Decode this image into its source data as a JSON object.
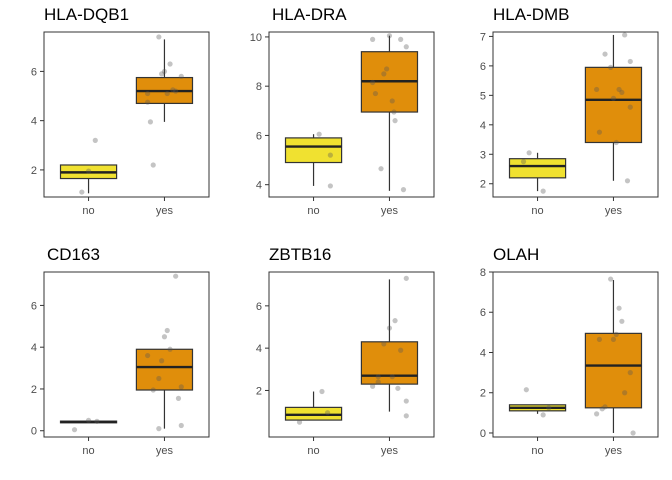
{
  "chart_data": [
    {
      "type": "box",
      "title": "HLA-DQB1",
      "categories": [
        "no",
        "yes"
      ],
      "ylim": [
        0.9,
        7.6
      ],
      "yticks": [
        2,
        4,
        6
      ],
      "groups": [
        {
          "name": "no",
          "color": "#F0E130",
          "box": {
            "min": 1.05,
            "q1": 1.65,
            "median": 1.9,
            "q3": 2.2,
            "max": 2.2
          },
          "points": [
            [
              -0.12,
              1.1
            ],
            [
              0.12,
              3.2
            ],
            [
              0.0,
              1.95
            ]
          ]
        },
        {
          "name": "yes",
          "color": "#E08E0B",
          "box": {
            "min": 3.95,
            "q1": 4.7,
            "median": 5.2,
            "q3": 5.75,
            "max": 7.3
          },
          "points": [
            [
              -0.3,
              4.75
            ],
            [
              -0.25,
              3.95
            ],
            [
              -0.2,
              2.2
            ],
            [
              -0.1,
              7.4
            ],
            [
              -0.05,
              5.9
            ],
            [
              0.0,
              6.0
            ],
            [
              0.05,
              5.1
            ],
            [
              0.1,
              6.3
            ],
            [
              0.15,
              5.25
            ],
            [
              0.2,
              5.2
            ],
            [
              0.3,
              5.8
            ],
            [
              -0.3,
              5.1
            ]
          ]
        }
      ]
    },
    {
      "type": "box",
      "title": "HLA-DRA",
      "categories": [
        "no",
        "yes"
      ],
      "ylim": [
        3.5,
        10.2
      ],
      "yticks": [
        4,
        6,
        8,
        10
      ],
      "groups": [
        {
          "name": "no",
          "color": "#F0E130",
          "box": {
            "min": 3.95,
            "q1": 4.9,
            "median": 5.55,
            "q3": 5.9,
            "max": 6.05
          },
          "points": [
            [
              0.1,
              6.05
            ],
            [
              0.3,
              5.2
            ],
            [
              0.3,
              3.95
            ]
          ]
        },
        {
          "name": "yes",
          "color": "#E08E0B",
          "box": {
            "min": 3.75,
            "q1": 6.95,
            "median": 8.2,
            "q3": 9.4,
            "max": 10.05
          },
          "points": [
            [
              -0.3,
              9.9
            ],
            [
              -0.25,
              7.7
            ],
            [
              -0.15,
              4.65
            ],
            [
              -0.1,
              8.5
            ],
            [
              -0.05,
              8.7
            ],
            [
              0.0,
              10.05
            ],
            [
              0.05,
              7.4
            ],
            [
              0.08,
              6.95
            ],
            [
              0.1,
              6.6
            ],
            [
              0.2,
              9.9
            ],
            [
              0.25,
              3.8
            ],
            [
              0.3,
              9.6
            ],
            [
              -0.3,
              8.15
            ]
          ]
        }
      ]
    },
    {
      "type": "box",
      "title": "HLA-DMB",
      "categories": [
        "no",
        "yes"
      ],
      "ylim": [
        1.55,
        7.15
      ],
      "yticks": [
        2,
        3,
        4,
        5,
        6,
        7
      ],
      "groups": [
        {
          "name": "no",
          "color": "#F0E130",
          "box": {
            "min": 1.75,
            "q1": 2.2,
            "median": 2.6,
            "q3": 2.85,
            "max": 3.05
          },
          "points": [
            [
              -0.15,
              3.05
            ],
            [
              0.1,
              1.75
            ],
            [
              -0.25,
              2.75
            ]
          ]
        },
        {
          "name": "yes",
          "color": "#E08E0B",
          "box": {
            "min": 2.1,
            "q1": 3.4,
            "median": 4.85,
            "q3": 5.95,
            "max": 7.05
          },
          "points": [
            [
              -0.3,
              5.2
            ],
            [
              -0.25,
              3.75
            ],
            [
              -0.15,
              6.4
            ],
            [
              -0.05,
              5.95
            ],
            [
              0.0,
              4.9
            ],
            [
              0.05,
              3.4
            ],
            [
              0.1,
              5.2
            ],
            [
              0.15,
              5.1
            ],
            [
              0.2,
              7.05
            ],
            [
              0.25,
              2.1
            ],
            [
              0.3,
              6.15
            ],
            [
              0.3,
              4.6
            ]
          ]
        }
      ]
    },
    {
      "type": "box",
      "title": "CD163",
      "categories": [
        "no",
        "yes"
      ],
      "ylim": [
        -0.3,
        7.6
      ],
      "yticks": [
        0,
        2,
        4,
        6
      ],
      "groups": [
        {
          "name": "no",
          "color": "#F0E130",
          "box": {
            "min": 0.38,
            "q1": 0.38,
            "median": 0.42,
            "q3": 0.46,
            "max": 0.46
          },
          "points": [
            [
              -0.25,
              0.05
            ],
            [
              0.0,
              0.5
            ],
            [
              0.15,
              0.45
            ]
          ]
        },
        {
          "name": "yes",
          "color": "#E08E0B",
          "box": {
            "min": 0.1,
            "q1": 1.95,
            "median": 3.05,
            "q3": 3.9,
            "max": 3.9
          },
          "points": [
            [
              -0.3,
              3.6
            ],
            [
              -0.2,
              1.95
            ],
            [
              -0.1,
              2.5
            ],
            [
              -0.05,
              3.35
            ],
            [
              0.0,
              4.5
            ],
            [
              0.05,
              4.8
            ],
            [
              0.1,
              3.9
            ],
            [
              0.2,
              7.4
            ],
            [
              0.25,
              1.55
            ],
            [
              0.3,
              0.25
            ],
            [
              -0.1,
              0.1
            ],
            [
              0.3,
              2.1
            ]
          ]
        }
      ]
    },
    {
      "type": "box",
      "title": "ZBTB16",
      "categories": [
        "no",
        "yes"
      ],
      "ylim": [
        -0.2,
        7.6
      ],
      "yticks": [
        2,
        4,
        6
      ],
      "groups": [
        {
          "name": "no",
          "color": "#F0E130",
          "box": {
            "min": 0.6,
            "q1": 0.6,
            "median": 0.85,
            "q3": 1.2,
            "max": 1.95
          },
          "points": [
            [
              -0.25,
              0.5
            ],
            [
              0.15,
              1.95
            ],
            [
              0.25,
              0.95
            ]
          ]
        },
        {
          "name": "yes",
          "color": "#E08E0B",
          "box": {
            "min": 1.0,
            "q1": 2.3,
            "median": 2.7,
            "q3": 4.3,
            "max": 7.25
          },
          "points": [
            [
              -0.3,
              2.2
            ],
            [
              -0.2,
              2.4
            ],
            [
              -0.1,
              4.2
            ],
            [
              0.0,
              4.95
            ],
            [
              0.05,
              2.65
            ],
            [
              0.1,
              5.3
            ],
            [
              0.15,
              2.1
            ],
            [
              0.2,
              3.9
            ],
            [
              0.3,
              7.3
            ],
            [
              0.3,
              1.5
            ],
            [
              0.3,
              0.8
            ],
            [
              -0.2,
              2.65
            ]
          ]
        }
      ]
    },
    {
      "type": "box",
      "title": "OLAH",
      "categories": [
        "no",
        "yes"
      ],
      "ylim": [
        -0.2,
        8.0
      ],
      "yticks": [
        0,
        2,
        4,
        6,
        8
      ],
      "groups": [
        {
          "name": "no",
          "color": "#F0E130",
          "box": {
            "min": 0.95,
            "q1": 1.1,
            "median": 1.25,
            "q3": 1.4,
            "max": 1.4
          },
          "points": [
            [
              -0.2,
              2.15
            ],
            [
              0.1,
              0.9
            ],
            [
              0.2,
              1.25
            ]
          ]
        },
        {
          "name": "yes",
          "color": "#E08E0B",
          "box": {
            "min": 0.0,
            "q1": 1.25,
            "median": 3.35,
            "q3": 4.95,
            "max": 7.6
          },
          "points": [
            [
              -0.3,
              0.95
            ],
            [
              -0.25,
              4.65
            ],
            [
              -0.15,
              1.3
            ],
            [
              -0.05,
              7.65
            ],
            [
              0.0,
              4.65
            ],
            [
              0.05,
              4.9
            ],
            [
              0.1,
              6.2
            ],
            [
              0.15,
              5.55
            ],
            [
              0.2,
              2.0
            ],
            [
              0.3,
              3.0
            ],
            [
              0.35,
              0.0
            ],
            [
              -0.2,
              1.2
            ]
          ]
        }
      ]
    }
  ]
}
